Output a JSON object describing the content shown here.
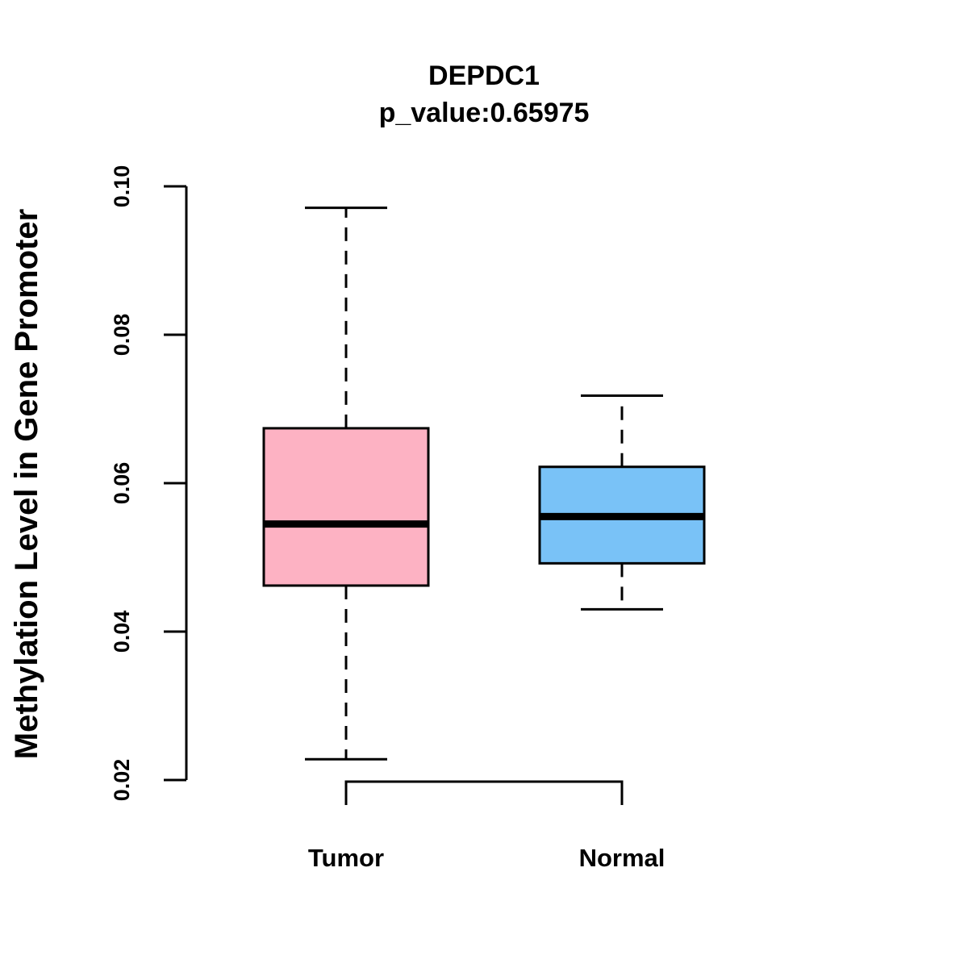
{
  "chart_data": {
    "type": "boxplot",
    "title": "DEPDC1",
    "subtitle": "p_value:0.65975",
    "xlabel": "",
    "ylabel": "Methylation Level in Gene Promoter",
    "ylim": [
      0.02,
      0.1
    ],
    "yticks": [
      0.02,
      0.04,
      0.06,
      0.08,
      0.1
    ],
    "ytick_labels": [
      "0.02",
      "0.04",
      "0.06",
      "0.08",
      "0.10"
    ],
    "grid": false,
    "significance_bracket": {
      "from": "Tumor",
      "to": "Normal",
      "label": ""
    },
    "categories": [
      "Tumor",
      "Normal"
    ],
    "series": [
      {
        "name": "Tumor",
        "color": "#FDB2C3",
        "whisker_low": 0.0228,
        "q1": 0.0462,
        "median": 0.0545,
        "q3": 0.0674,
        "whisker_high": 0.0971
      },
      {
        "name": "Normal",
        "color": "#79C2F7",
        "whisker_low": 0.043,
        "q1": 0.0492,
        "median": 0.0555,
        "q3": 0.0622,
        "whisker_high": 0.0718
      }
    ]
  }
}
